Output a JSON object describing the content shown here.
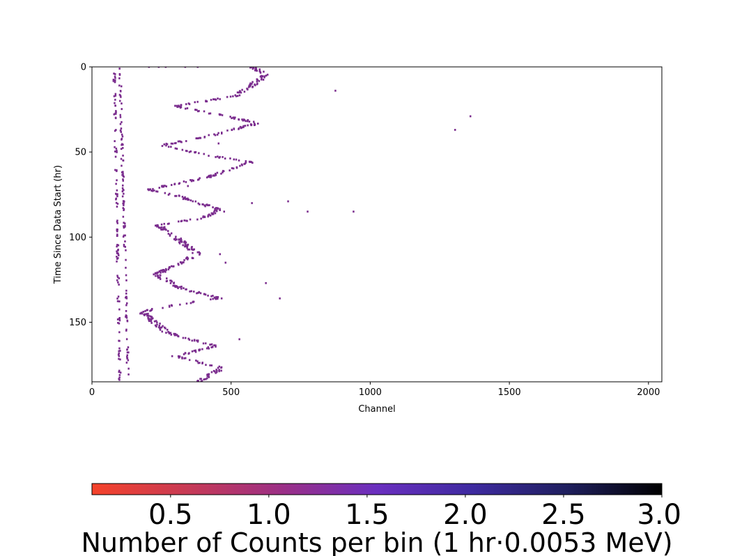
{
  "chart_data": {
    "type": "heatmap",
    "xlabel": "Channel",
    "ylabel": "Time Since Data Start (hr)",
    "xlim": [
      0,
      2048
    ],
    "ylim": [
      185,
      0
    ],
    "y_inverted": true,
    "x_ticks": [
      0,
      500,
      1000,
      1500,
      2000
    ],
    "x_tick_labels": [
      "0",
      "500",
      "1000",
      "1500",
      "2000"
    ],
    "y_ticks": [
      0,
      50,
      100,
      150
    ],
    "y_tick_labels": [
      "0",
      "50",
      "100",
      "150"
    ],
    "bin_color": "#7b2d8e",
    "colorbar": {
      "label": "Number of Counts per bin (1 hr·0.0053 MeV)",
      "range": [
        0.1,
        3.0
      ],
      "ticks": [
        0.5,
        1.0,
        1.5,
        2.0,
        2.5,
        3.0
      ],
      "tick_labels": [
        "0.5",
        "1.0",
        "1.5",
        "2.0",
        "2.5",
        "3.0"
      ],
      "colormap": [
        "#f5422a",
        "#c73a55",
        "#9b2f86",
        "#6a2fbf",
        "#3e2aa0",
        "#1f1f5e",
        "#000000"
      ]
    },
    "bands": [
      {
        "x0": 80,
        "x1": 100,
        "y0": 0,
        "y1": 185
      },
      {
        "x0": 100,
        "x1": 130,
        "y0": 0,
        "y1": 185
      },
      {
        "x0": 575,
        "x1": 625,
        "y0": 0,
        "y1": 5
      },
      {
        "x0": 625,
        "x1": 520,
        "y0": 5,
        "y1": 17
      },
      {
        "x0": 520,
        "x1": 300,
        "y0": 17,
        "y1": 23
      },
      {
        "x0": 300,
        "x1": 450,
        "y0": 23,
        "y1": 28
      },
      {
        "x0": 450,
        "x1": 600,
        "y0": 28,
        "y1": 33
      },
      {
        "x0": 600,
        "x1": 410,
        "y0": 33,
        "y1": 41
      },
      {
        "x0": 410,
        "x1": 250,
        "y0": 41,
        "y1": 46
      },
      {
        "x0": 250,
        "x1": 420,
        "y0": 46,
        "y1": 52
      },
      {
        "x0": 420,
        "x1": 570,
        "y0": 52,
        "y1": 56
      },
      {
        "x0": 570,
        "x1": 410,
        "y0": 56,
        "y1": 65
      },
      {
        "x0": 410,
        "x1": 200,
        "y0": 65,
        "y1": 72
      },
      {
        "x0": 200,
        "x1": 310,
        "y0": 72,
        "y1": 76
      },
      {
        "x0": 310,
        "x1": 460,
        "y0": 76,
        "y1": 84
      },
      {
        "x0": 460,
        "x1": 390,
        "y0": 84,
        "y1": 89
      },
      {
        "x0": 390,
        "x1": 240,
        "y0": 89,
        "y1": 93
      },
      {
        "x0": 240,
        "x1": 300,
        "y0": 93,
        "y1": 100
      },
      {
        "x0": 300,
        "x1": 380,
        "y0": 100,
        "y1": 110
      },
      {
        "x0": 380,
        "x1": 230,
        "y0": 110,
        "y1": 122
      },
      {
        "x0": 230,
        "x1": 320,
        "y0": 122,
        "y1": 130
      },
      {
        "x0": 320,
        "x1": 460,
        "y0": 130,
        "y1": 136
      },
      {
        "x0": 460,
        "x1": 290,
        "y0": 136,
        "y1": 140
      },
      {
        "x0": 290,
        "x1": 180,
        "y0": 140,
        "y1": 144
      },
      {
        "x0": 180,
        "x1": 270,
        "y0": 144,
        "y1": 156
      },
      {
        "x0": 270,
        "x1": 440,
        "y0": 156,
        "y1": 164
      },
      {
        "x0": 440,
        "x1": 300,
        "y0": 164,
        "y1": 170
      },
      {
        "x0": 300,
        "x1": 470,
        "y0": 170,
        "y1": 177
      },
      {
        "x0": 470,
        "x1": 380,
        "y0": 177,
        "y1": 185
      }
    ],
    "outliers": [
      {
        "x": 875,
        "y": 14
      },
      {
        "x": 1360,
        "y": 29
      },
      {
        "x": 1305,
        "y": 37
      },
      {
        "x": 705,
        "y": 79
      },
      {
        "x": 775,
        "y": 85
      },
      {
        "x": 940,
        "y": 85
      },
      {
        "x": 625,
        "y": 127
      },
      {
        "x": 675,
        "y": 136
      },
      {
        "x": 530,
        "y": 160
      },
      {
        "x": 480,
        "y": 115
      },
      {
        "x": 460,
        "y": 110
      },
      {
        "x": 575,
        "y": 80
      },
      {
        "x": 475,
        "y": 85
      },
      {
        "x": 375,
        "y": 42
      },
      {
        "x": 345,
        "y": 70
      },
      {
        "x": 455,
        "y": 45
      },
      {
        "x": 240,
        "y": 0
      },
      {
        "x": 335,
        "y": 0
      },
      {
        "x": 265,
        "y": 0
      },
      {
        "x": 205,
        "y": 0
      },
      {
        "x": 380,
        "y": 0
      }
    ]
  }
}
